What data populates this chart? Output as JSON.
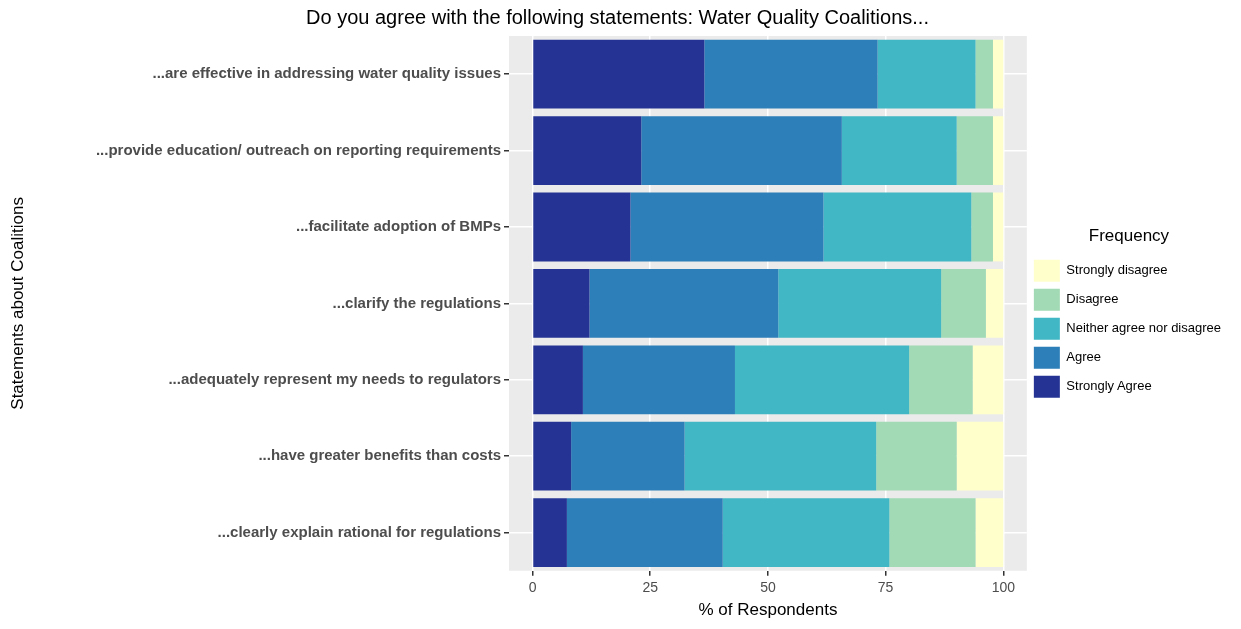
{
  "chart_data": {
    "type": "bar",
    "orientation": "horizontal",
    "stacked": true,
    "title": "Do you agree with the following statements: Water Quality Coalitions...",
    "xlabel": "% of Respondents",
    "ylabel": "Statements about Coalitions",
    "legend_title": "Frequency",
    "categories": [
      "...are effective in addressing water quality issues",
      "...provide education/ outreach on reporting requirements",
      "...facilitate adoption of BMPs",
      "...clarify the regulations",
      "...adequately represent my needs to regulators",
      "...have greater benefits than costs",
      "...clearly explain rational for regulations"
    ],
    "series": [
      {
        "name": "Strongly Agree",
        "color": "#253494",
        "values": [
          36.5,
          23.1,
          20.8,
          12.1,
          10.7,
          8.2,
          7.3
        ]
      },
      {
        "name": "Agree",
        "color": "#2c7fb8",
        "values": [
          36.8,
          42.6,
          41.0,
          40.1,
          32.3,
          24.1,
          33.1
        ]
      },
      {
        "name": "Neither agree nor disagree",
        "color": "#41b6c4",
        "values": [
          20.8,
          24.4,
          31.4,
          34.6,
          37.0,
          40.7,
          35.4
        ]
      },
      {
        "name": "Disagree",
        "color": "#a1dab4",
        "values": [
          3.7,
          7.7,
          4.6,
          9.5,
          13.5,
          17.1,
          18.3
        ]
      },
      {
        "name": "Strongly disagree",
        "color": "#ffffcc",
        "values": [
          2.2,
          2.2,
          2.2,
          3.7,
          6.5,
          9.9,
          5.9
        ]
      }
    ],
    "xlim": [
      -5,
      105
    ],
    "xticks": [
      0,
      25,
      50,
      75,
      100
    ],
    "grid": true,
    "legend": "right"
  }
}
